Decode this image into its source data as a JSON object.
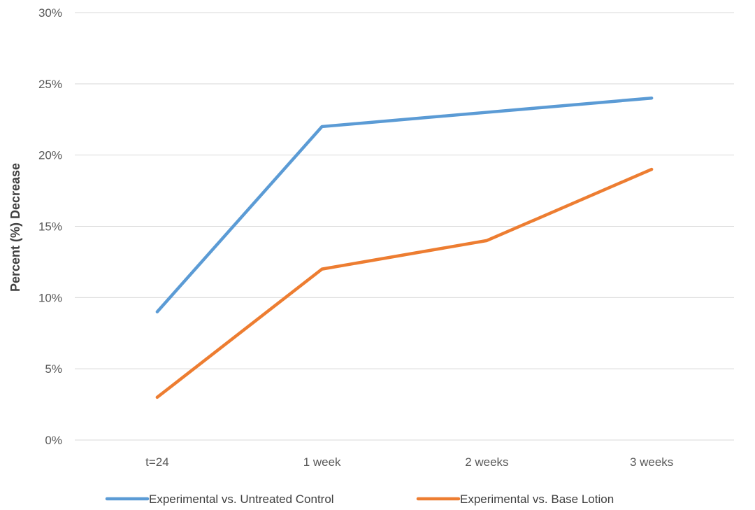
{
  "chart_data": {
    "type": "line",
    "title": "",
    "xlabel": "",
    "ylabel": "Percent (%) Decrease",
    "categories": [
      "t=24",
      "1 week",
      "2 weeks",
      "3 weeks"
    ],
    "ylim": [
      0,
      30
    ],
    "yticks": [
      0,
      5,
      10,
      15,
      20,
      25,
      30
    ],
    "ytick_labels": [
      "0%",
      "5%",
      "10%",
      "15%",
      "20%",
      "25%",
      "30%"
    ],
    "grid": true,
    "legend_position": "bottom",
    "series": [
      {
        "name": "Experimental vs. Untreated Control",
        "values": [
          9,
          22,
          23,
          24
        ],
        "color": "#5B9BD5"
      },
      {
        "name": "Experimental vs. Base Lotion",
        "values": [
          3,
          12,
          14,
          19
        ],
        "color": "#ED7D31"
      }
    ]
  }
}
